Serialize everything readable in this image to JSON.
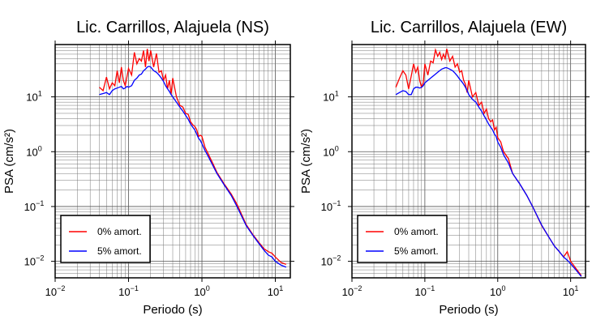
{
  "chart_data": [
    {
      "type": "line",
      "title": "Lic. Carrillos, Alajuela (NS)",
      "xlabel": "Periodo (s)",
      "ylabel": "PSA (cm/s²)",
      "xscale": "log",
      "yscale": "log",
      "xlim": [
        0.01,
        16
      ],
      "ylim": [
        0.005,
        90
      ],
      "xticks": [
        {
          "base": "10",
          "exp": "−2",
          "value": 0.01
        },
        {
          "base": "10",
          "exp": "−1",
          "value": 0.1
        },
        {
          "base": "10",
          "exp": "0",
          "value": 1
        },
        {
          "base": "10",
          "exp": "1",
          "value": 10
        }
      ],
      "yticks": [
        {
          "base": "10",
          "exp": "−2",
          "value": 0.01
        },
        {
          "base": "10",
          "exp": "−1",
          "value": 0.1
        },
        {
          "base": "10",
          "exp": "0",
          "value": 1
        },
        {
          "base": "10",
          "exp": "1",
          "value": 10
        }
      ],
      "grid": true,
      "legend_position": "bottom-left",
      "series": [
        {
          "name": "0% amort.",
          "color": "#ff0000",
          "x": [
            0.04,
            0.045,
            0.05,
            0.055,
            0.06,
            0.065,
            0.07,
            0.075,
            0.08,
            0.085,
            0.09,
            0.095,
            0.1,
            0.11,
            0.12,
            0.13,
            0.14,
            0.15,
            0.16,
            0.17,
            0.18,
            0.19,
            0.2,
            0.22,
            0.24,
            0.26,
            0.28,
            0.3,
            0.32,
            0.34,
            0.36,
            0.38,
            0.4,
            0.45,
            0.5,
            0.55,
            0.6,
            0.65,
            0.7,
            0.75,
            0.8,
            0.85,
            0.9,
            0.95,
            1.0,
            1.1,
            1.2,
            1.4,
            1.6,
            2.0,
            2.5,
            3.0,
            4.0,
            5.0,
            6.0,
            7.0,
            8.0,
            9.0,
            10.0,
            12.0,
            14.0
          ],
          "y": [
            15,
            13,
            23,
            14,
            18,
            16,
            30,
            18,
            35,
            20,
            16,
            23,
            33,
            25,
            65,
            40,
            50,
            45,
            70,
            35,
            75,
            45,
            70,
            35,
            62,
            28,
            30,
            20,
            25,
            14,
            20,
            11,
            22,
            10,
            7,
            6.5,
            5,
            4.8,
            3.5,
            3.1,
            2.9,
            2.5,
            1.9,
            2,
            1.9,
            1.2,
            0.95,
            0.62,
            0.42,
            0.26,
            0.17,
            0.11,
            0.047,
            0.03,
            0.022,
            0.017,
            0.015,
            0.014,
            0.012,
            0.0095,
            0.0088
          ]
        },
        {
          "name": "5% amort.",
          "color": "#0000ff",
          "x": [
            0.04,
            0.045,
            0.05,
            0.055,
            0.06,
            0.065,
            0.07,
            0.075,
            0.08,
            0.085,
            0.09,
            0.095,
            0.1,
            0.11,
            0.12,
            0.13,
            0.14,
            0.15,
            0.16,
            0.17,
            0.18,
            0.19,
            0.2,
            0.22,
            0.24,
            0.26,
            0.28,
            0.3,
            0.32,
            0.34,
            0.36,
            0.38,
            0.4,
            0.45,
            0.5,
            0.55,
            0.6,
            0.65,
            0.7,
            0.75,
            0.8,
            0.85,
            0.9,
            0.95,
            1.0,
            1.1,
            1.2,
            1.4,
            1.6,
            2.0,
            2.5,
            3.0,
            4.0,
            5.0,
            6.0,
            7.0,
            8.0,
            9.0,
            10.0,
            12.0,
            14.0
          ],
          "y": [
            11,
            11.5,
            12,
            11,
            13,
            14,
            14.5,
            15,
            15.5,
            14,
            14.5,
            15.5,
            15,
            16,
            20,
            22,
            25,
            26,
            30,
            32,
            35,
            36,
            35,
            30,
            28,
            25,
            22,
            19,
            16,
            14,
            12.5,
            11,
            10,
            8,
            6.5,
            5.5,
            4.6,
            3.9,
            3.2,
            2.8,
            2.5,
            2.1,
            1.75,
            1.6,
            1.4,
            1.05,
            0.85,
            0.57,
            0.4,
            0.25,
            0.16,
            0.1,
            0.045,
            0.029,
            0.021,
            0.016,
            0.013,
            0.012,
            0.01,
            0.0085,
            0.0078
          ]
        }
      ]
    },
    {
      "type": "line",
      "title": "Lic. Carrillos, Alajuela (EW)",
      "xlabel": "Periodo (s)",
      "ylabel": "PSA (cm/s²)",
      "xscale": "log",
      "yscale": "log",
      "xlim": [
        0.01,
        16
      ],
      "ylim": [
        0.005,
        90
      ],
      "xticks": [
        {
          "base": "10",
          "exp": "−2",
          "value": 0.01
        },
        {
          "base": "10",
          "exp": "−1",
          "value": 0.1
        },
        {
          "base": "10",
          "exp": "0",
          "value": 1
        },
        {
          "base": "10",
          "exp": "1",
          "value": 10
        }
      ],
      "yticks": [
        {
          "base": "10",
          "exp": "−2",
          "value": 0.01
        },
        {
          "base": "10",
          "exp": "−1",
          "value": 0.1
        },
        {
          "base": "10",
          "exp": "0",
          "value": 1
        },
        {
          "base": "10",
          "exp": "1",
          "value": 10
        }
      ],
      "grid": true,
      "legend_position": "bottom-left",
      "series": [
        {
          "name": "0% amort.",
          "color": "#ff0000",
          "x": [
            0.04,
            0.045,
            0.05,
            0.055,
            0.06,
            0.065,
            0.07,
            0.075,
            0.08,
            0.085,
            0.09,
            0.095,
            0.1,
            0.11,
            0.12,
            0.13,
            0.14,
            0.15,
            0.16,
            0.17,
            0.18,
            0.19,
            0.2,
            0.22,
            0.24,
            0.26,
            0.28,
            0.3,
            0.32,
            0.34,
            0.36,
            0.38,
            0.4,
            0.45,
            0.5,
            0.55,
            0.6,
            0.65,
            0.7,
            0.75,
            0.8,
            0.85,
            0.9,
            0.95,
            1.0,
            1.1,
            1.2,
            1.4,
            1.6,
            2.0,
            2.5,
            3.0,
            4.0,
            5.0,
            6.0,
            7.0,
            8.0,
            9.0,
            10.0,
            12.0,
            14.0
          ],
          "y": [
            15,
            22,
            30,
            25,
            14,
            24,
            40,
            28,
            35,
            20,
            15,
            18,
            40,
            25,
            45,
            42,
            72,
            55,
            65,
            48,
            60,
            50,
            75,
            45,
            55,
            35,
            40,
            28,
            30,
            20,
            17,
            12,
            20,
            10,
            12,
            7,
            8,
            5,
            6,
            4,
            3.5,
            3.8,
            2.5,
            2.8,
            1.8,
            1.5,
            1,
            0.75,
            0.4,
            0.26,
            0.16,
            0.1,
            0.045,
            0.028,
            0.019,
            0.015,
            0.012,
            0.015,
            0.01,
            0.0072,
            0.0055
          ]
        },
        {
          "name": "5% amort.",
          "color": "#0000ff",
          "x": [
            0.04,
            0.045,
            0.05,
            0.055,
            0.06,
            0.065,
            0.07,
            0.075,
            0.08,
            0.085,
            0.09,
            0.095,
            0.1,
            0.11,
            0.12,
            0.13,
            0.14,
            0.15,
            0.16,
            0.17,
            0.18,
            0.19,
            0.2,
            0.22,
            0.24,
            0.26,
            0.28,
            0.3,
            0.32,
            0.34,
            0.36,
            0.38,
            0.4,
            0.45,
            0.5,
            0.55,
            0.6,
            0.65,
            0.7,
            0.75,
            0.8,
            0.85,
            0.9,
            0.95,
            1.0,
            1.1,
            1.2,
            1.4,
            1.6,
            2.0,
            2.5,
            3.0,
            4.0,
            5.0,
            6.0,
            7.0,
            8.0,
            9.0,
            10.0,
            12.0,
            14.0
          ],
          "y": [
            11,
            12,
            13,
            12.5,
            11,
            11,
            14,
            15,
            15,
            14.5,
            15,
            16,
            18,
            20,
            22,
            24,
            26,
            28,
            30,
            32,
            33,
            34,
            34,
            32,
            30,
            27,
            24,
            21,
            19,
            17,
            15,
            13,
            11,
            9,
            8,
            6.5,
            5.5,
            4.5,
            3.8,
            3.2,
            2.8,
            2.5,
            2.1,
            1.9,
            1.5,
            1.2,
            0.88,
            0.62,
            0.4,
            0.26,
            0.16,
            0.1,
            0.046,
            0.028,
            0.019,
            0.015,
            0.012,
            0.0105,
            0.009,
            0.0068,
            0.0053
          ]
        }
      ]
    }
  ]
}
